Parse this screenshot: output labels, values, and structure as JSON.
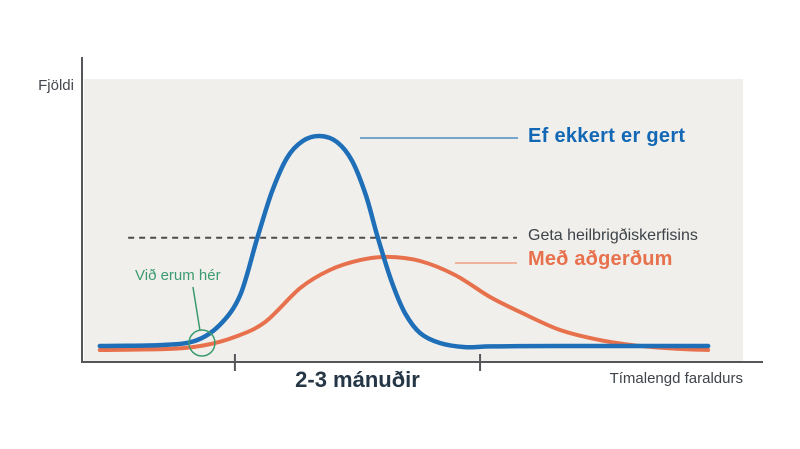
{
  "chart_data": {
    "type": "line",
    "title": "",
    "ylabel": "Fjöldi",
    "xlabel": "Tímalengd faraldurs",
    "x_range": [
      0,
      100
    ],
    "y_range": [
      0,
      100
    ],
    "axis_note": "no numeric tick labels shown; x = share of epidemic duration, y = relative case count (100 = peak of no-action curve)",
    "grid": false,
    "legend_position": "right of curves, inline leader lines",
    "series": [
      {
        "name": "Ef ekkert er gert",
        "color": "#1f6fb8",
        "points": [
          [
            2.4,
            7.1
          ],
          [
            11.5,
            7.5
          ],
          [
            16.8,
            9.3
          ],
          [
            20.6,
            16.4
          ],
          [
            23.7,
            29.6
          ],
          [
            26.3,
            54.9
          ],
          [
            28.5,
            75.2
          ],
          [
            30.8,
            90.3
          ],
          [
            33.2,
            97.8
          ],
          [
            35.8,
            100
          ],
          [
            38.4,
            97.3
          ],
          [
            40.7,
            88.9
          ],
          [
            42.8,
            73.5
          ],
          [
            44.6,
            54.9
          ],
          [
            46.7,
            35.4
          ],
          [
            48.7,
            21.7
          ],
          [
            51,
            12.8
          ],
          [
            54,
            8.4
          ],
          [
            57.8,
            6.6
          ],
          [
            62,
            6.9
          ],
          [
            72.2,
            7.1
          ],
          [
            94.7,
            7.1
          ]
        ]
      },
      {
        "name": "Með aðgerðum",
        "color": "#e8714d",
        "points": [
          [
            2.4,
            5.3
          ],
          [
            13.1,
            5.8
          ],
          [
            18.4,
            7.5
          ],
          [
            22.9,
            11.1
          ],
          [
            27.5,
            17.7
          ],
          [
            32.8,
            32.7
          ],
          [
            37.3,
            40.7
          ],
          [
            41.9,
            45.1
          ],
          [
            46.1,
            46.5
          ],
          [
            51,
            44.7
          ],
          [
            56.3,
            38.5
          ],
          [
            61.6,
            28.8
          ],
          [
            66.2,
            22.1
          ],
          [
            72.2,
            14.2
          ],
          [
            78.3,
            9.7
          ],
          [
            84.4,
            7.1
          ],
          [
            90.4,
            5.8
          ],
          [
            94.7,
            5.3
          ]
        ]
      }
    ],
    "capacity_line": {
      "label": "Geta heilbrigðiskerfisins",
      "y": 55,
      "x_start": 6.7,
      "x_end": 65.7,
      "style": "dashed"
    },
    "x_interval_marker": {
      "label": "2-3 mánuðir",
      "tick_x": [
        22.9,
        60.1
      ]
    },
    "current_position_marker": {
      "label": "Við erum hér",
      "x": 17.9,
      "y": 8.4,
      "marker": "circle-outline"
    }
  },
  "colors": {
    "background": "#ffffff",
    "plot_bg": "#f0efeb",
    "axis": "#54565a",
    "capacity_dash": "#4a4c4e",
    "blue_curve": "#1f6fb8",
    "blue_text": "#1268b4",
    "blue_leader": "#4d8ec5",
    "orange_curve": "#e8714d",
    "orange_leader": "#eda183",
    "green": "#3b9b6e",
    "dark_text": "#253746",
    "gray_text": "#3d4349"
  }
}
